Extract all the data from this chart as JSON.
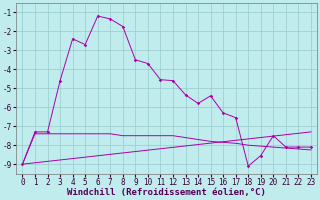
{
  "xlabel": "Windchill (Refroidissement éolien,°C)",
  "background_color": "#c0ecee",
  "grid_color": "#99cccc",
  "line_color": "#aa00aa",
  "xlim": [
    -0.5,
    23.5
  ],
  "ylim": [
    -9.5,
    -0.5
  ],
  "yticks": [
    -9,
    -8,
    -7,
    -6,
    -5,
    -4,
    -3,
    -2,
    -1
  ],
  "xticks": [
    0,
    1,
    2,
    3,
    4,
    5,
    6,
    7,
    8,
    9,
    10,
    11,
    12,
    13,
    14,
    15,
    16,
    17,
    18,
    19,
    20,
    21,
    22,
    23
  ],
  "line1_x": [
    0,
    1,
    2,
    3,
    4,
    5,
    6,
    7,
    8,
    9,
    10,
    11,
    12,
    13,
    14,
    15,
    16,
    17,
    18,
    19,
    20,
    21,
    22,
    23
  ],
  "line1_y": [
    -9.0,
    -7.3,
    -7.3,
    -4.6,
    -2.4,
    -2.7,
    -1.2,
    -1.35,
    -1.75,
    -3.5,
    -3.7,
    -4.55,
    -4.6,
    -5.35,
    -5.8,
    -5.4,
    -6.3,
    -6.55,
    -9.1,
    -8.55,
    -7.5,
    -8.1,
    -8.1,
    -8.1
  ],
  "line2_x": [
    0,
    23
  ],
  "line2_y": [
    -9.0,
    -7.3
  ],
  "line3_x": [
    0,
    1,
    2,
    3,
    4,
    5,
    6,
    7,
    8,
    9,
    10,
    11,
    12,
    13,
    14,
    15,
    16,
    17,
    18,
    19,
    20,
    21,
    22,
    23
  ],
  "line3_y": [
    -9.0,
    -7.4,
    -7.4,
    -7.4,
    -7.4,
    -7.4,
    -7.4,
    -7.4,
    -7.5,
    -7.5,
    -7.5,
    -7.5,
    -7.5,
    -7.6,
    -7.7,
    -7.8,
    -7.85,
    -7.9,
    -8.0,
    -8.05,
    -8.1,
    -8.15,
    -8.2,
    -8.25
  ],
  "font_size_axis": 6.5,
  "font_size_tick": 5.5
}
